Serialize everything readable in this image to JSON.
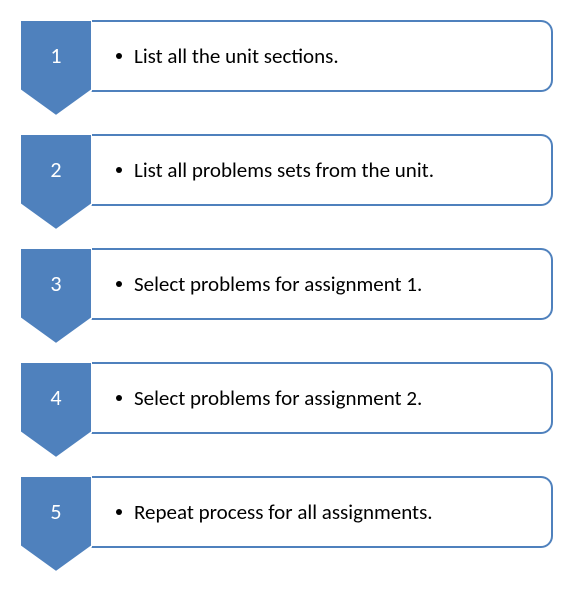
{
  "diagram": {
    "type": "flowchart",
    "chevron_color": "#4f81bd",
    "chevron_stroke": "#ffffff",
    "box_border_color": "#4f81bd",
    "box_bg": "#ffffff",
    "text_color": "#000000",
    "number_color": "#ffffff",
    "font_family": "Calibri",
    "number_fontsize": 22,
    "text_fontsize": 21,
    "box_radius": 12,
    "steps": [
      {
        "num": "1",
        "text": "List all the unit sections."
      },
      {
        "num": "2",
        "text": "List all problems sets from the unit."
      },
      {
        "num": "3",
        "text": "Select problems for assignment 1."
      },
      {
        "num": "4",
        "text": "Select problems for assignment 2."
      },
      {
        "num": "5",
        "text": "Repeat process for all assignments."
      }
    ]
  }
}
